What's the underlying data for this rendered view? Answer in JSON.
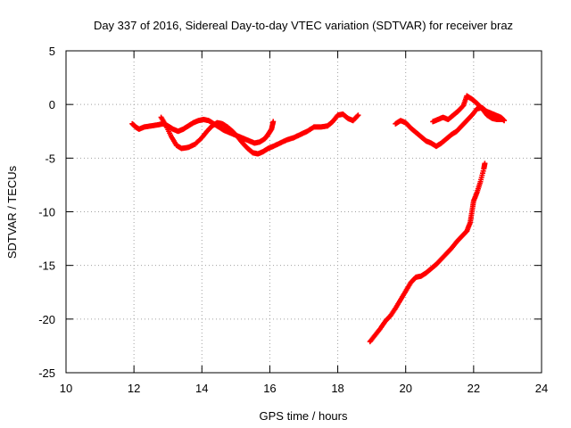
{
  "chart_data": {
    "type": "scatter",
    "title": "Day 337 of 2016, Sidereal Day-to-day VTEC variation (SDTVAR) for receiver braz",
    "xlabel": "GPS time / hours",
    "ylabel": "SDTVAR / TECUs",
    "xlim": [
      10,
      24
    ],
    "ylim": [
      -25,
      5
    ],
    "xticks": [
      10,
      12,
      14,
      16,
      18,
      20,
      22,
      24
    ],
    "yticks": [
      5,
      0,
      -5,
      -10,
      -15,
      -20,
      -25
    ],
    "grid": true,
    "marker": "plus",
    "color": "#ff0000",
    "series": [
      {
        "values": [
          [
            11.95,
            -1.8
          ],
          [
            12.05,
            -2.1
          ],
          [
            12.15,
            -2.3
          ],
          [
            12.3,
            -2.1
          ],
          [
            12.5,
            -2.0
          ],
          [
            12.7,
            -1.9
          ],
          [
            12.85,
            -1.8
          ],
          [
            13.0,
            -2.0
          ],
          [
            13.15,
            -2.3
          ],
          [
            13.3,
            -2.5
          ],
          [
            13.45,
            -2.3
          ],
          [
            13.6,
            -2.0
          ],
          [
            13.75,
            -1.7
          ],
          [
            13.9,
            -1.5
          ],
          [
            14.05,
            -1.4
          ],
          [
            14.2,
            -1.5
          ],
          [
            14.35,
            -1.8
          ],
          [
            14.5,
            -2.1
          ],
          [
            14.65,
            -2.4
          ],
          [
            14.8,
            -2.6
          ],
          [
            14.95,
            -2.8
          ],
          [
            15.1,
            -3.0
          ],
          [
            15.25,
            -3.2
          ],
          [
            15.4,
            -3.4
          ],
          [
            15.55,
            -3.6
          ],
          [
            15.7,
            -3.5
          ],
          [
            15.85,
            -3.2
          ],
          [
            15.95,
            -2.8
          ],
          [
            16.05,
            -2.3
          ],
          [
            16.1,
            -1.6
          ]
        ]
      },
      {
        "values": [
          [
            12.8,
            -1.2
          ],
          [
            12.95,
            -2.0
          ],
          [
            13.1,
            -3.0
          ],
          [
            13.25,
            -3.8
          ],
          [
            13.4,
            -4.1
          ],
          [
            13.6,
            -4.0
          ],
          [
            13.8,
            -3.7
          ],
          [
            14.0,
            -3.1
          ],
          [
            14.15,
            -2.5
          ],
          [
            14.3,
            -2.0
          ],
          [
            14.45,
            -1.7
          ],
          [
            14.6,
            -1.8
          ],
          [
            14.75,
            -2.1
          ],
          [
            14.9,
            -2.5
          ],
          [
            15.05,
            -3.0
          ],
          [
            15.2,
            -3.6
          ],
          [
            15.35,
            -4.1
          ],
          [
            15.5,
            -4.5
          ],
          [
            15.65,
            -4.6
          ],
          [
            15.8,
            -4.4
          ],
          [
            15.95,
            -4.1
          ],
          [
            16.1,
            -3.9
          ],
          [
            16.3,
            -3.6
          ],
          [
            16.5,
            -3.3
          ],
          [
            16.7,
            -3.1
          ],
          [
            16.9,
            -2.8
          ],
          [
            17.1,
            -2.5
          ],
          [
            17.3,
            -2.1
          ],
          [
            17.5,
            -2.1
          ],
          [
            17.7,
            -2.0
          ],
          [
            17.85,
            -1.6
          ],
          [
            18.0,
            -1.0
          ],
          [
            18.15,
            -0.9
          ],
          [
            18.3,
            -1.3
          ],
          [
            18.45,
            -1.5
          ],
          [
            18.6,
            -1.0
          ]
        ]
      },
      {
        "values": [
          [
            19.7,
            -1.8
          ],
          [
            19.85,
            -1.5
          ],
          [
            20.0,
            -1.7
          ],
          [
            20.15,
            -2.2
          ],
          [
            20.3,
            -2.6
          ],
          [
            20.45,
            -3.0
          ],
          [
            20.6,
            -3.4
          ],
          [
            20.75,
            -3.6
          ],
          [
            20.9,
            -3.9
          ],
          [
            21.05,
            -3.6
          ],
          [
            21.2,
            -3.2
          ],
          [
            21.35,
            -2.8
          ],
          [
            21.5,
            -2.5
          ],
          [
            21.65,
            -2.0
          ],
          [
            21.8,
            -1.5
          ],
          [
            21.95,
            -1.0
          ],
          [
            22.1,
            -0.4
          ],
          [
            22.25,
            -0.3
          ],
          [
            22.35,
            -0.6
          ],
          [
            22.5,
            -0.8
          ],
          [
            22.65,
            -1.0
          ],
          [
            22.8,
            -1.2
          ],
          [
            22.9,
            -1.5
          ]
        ]
      },
      {
        "values": [
          [
            20.8,
            -1.6
          ],
          [
            20.95,
            -1.4
          ],
          [
            21.1,
            -1.2
          ],
          [
            21.25,
            -1.4
          ],
          [
            21.4,
            -1.0
          ],
          [
            21.55,
            -0.6
          ],
          [
            21.7,
            -0.1
          ],
          [
            21.8,
            0.8
          ],
          [
            21.95,
            0.5
          ],
          [
            22.1,
            0.1
          ],
          [
            22.25,
            -0.4
          ],
          [
            22.4,
            -1.0
          ],
          [
            22.55,
            -1.3
          ],
          [
            22.7,
            -1.4
          ],
          [
            22.85,
            -1.4
          ]
        ]
      },
      {
        "values": [
          [
            18.95,
            -22.1
          ],
          [
            19.1,
            -21.5
          ],
          [
            19.25,
            -20.9
          ],
          [
            19.4,
            -20.2
          ],
          [
            19.55,
            -19.7
          ],
          [
            19.7,
            -19.0
          ],
          [
            19.85,
            -18.2
          ],
          [
            20.0,
            -17.4
          ],
          [
            20.15,
            -16.6
          ],
          [
            20.3,
            -16.1
          ],
          [
            20.45,
            -16.0
          ],
          [
            20.6,
            -15.7
          ],
          [
            20.75,
            -15.3
          ],
          [
            20.9,
            -14.9
          ],
          [
            21.05,
            -14.4
          ],
          [
            21.2,
            -13.9
          ],
          [
            21.35,
            -13.4
          ],
          [
            21.5,
            -12.8
          ],
          [
            21.65,
            -12.3
          ],
          [
            21.8,
            -11.8
          ],
          [
            21.9,
            -11.0
          ],
          [
            21.95,
            -10.0
          ],
          [
            22.0,
            -9.0
          ],
          [
            22.1,
            -8.2
          ],
          [
            22.2,
            -7.2
          ],
          [
            22.3,
            -6.0
          ],
          [
            22.33,
            -5.5
          ]
        ]
      }
    ]
  }
}
